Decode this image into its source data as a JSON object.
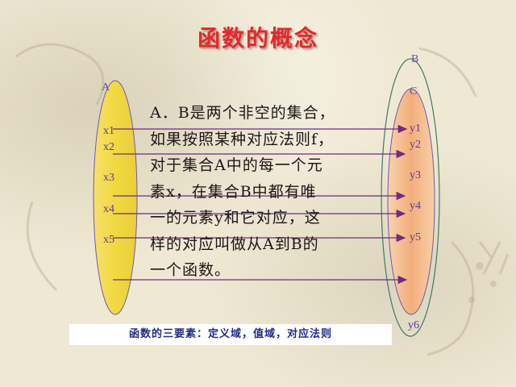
{
  "title": "函数的概念",
  "sets": {
    "a_label": "A",
    "b_label": "B",
    "c_label": "C",
    "x_items": [
      "x1",
      "x2",
      "x3",
      "x4",
      "x5"
    ],
    "y_items": [
      "y1",
      "y2",
      "y3",
      "y4",
      "y5",
      "y6"
    ]
  },
  "definition_lines": [
    "A．B是两个非空的集合，",
    "如果按照某种对应法则f，",
    "对于集合A中的每一个元",
    "素x，在集合B中都有唯",
    "一的元素y和它对应，这",
    "样的对应叫做从A到B的",
    "一个函数。"
  ],
  "footer_text": "函数的三要素：定义域，值域，对应法则",
  "colors": {
    "title": "#e8262b",
    "labels": "#5a3aa0",
    "ellipse_a_fill": "#f2d948",
    "ellipse_b_fill": "#f4b98c",
    "arrow": "#6f2a8a",
    "footer_text": "#1d2b88"
  }
}
